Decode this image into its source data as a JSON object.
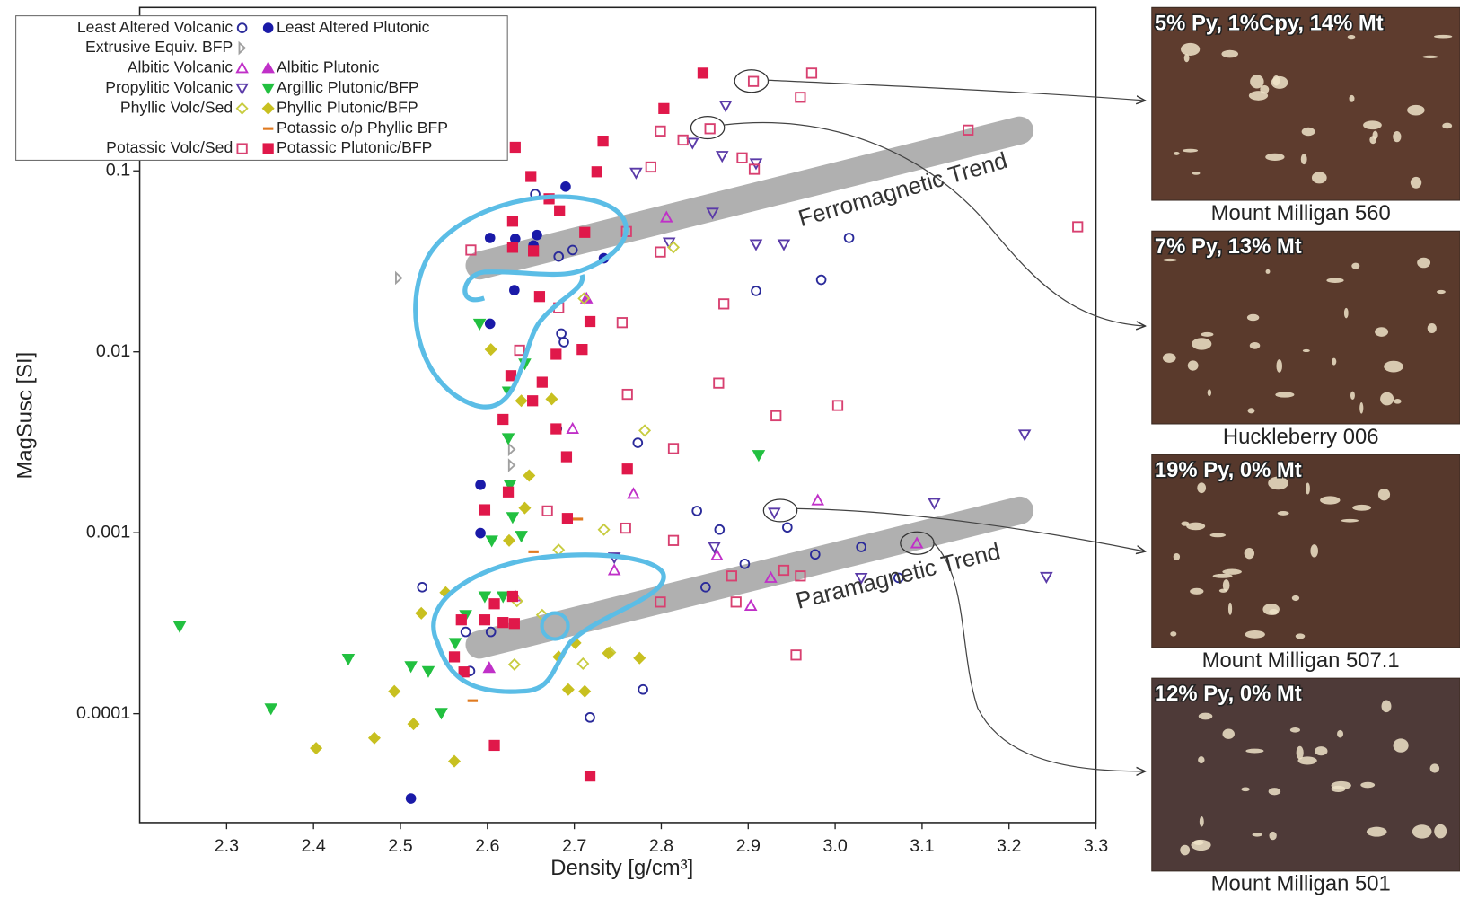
{
  "chart_data": {
    "type": "scatter",
    "x_label": "Density [g/cm³]",
    "y_label": "MagSusc [SI]",
    "yscale": "log",
    "xlim": [
      2.2,
      3.3
    ],
    "ylim": [
      2.5e-05,
      0.8
    ],
    "xticks": [
      2.3,
      2.4,
      2.5,
      2.6,
      2.7,
      2.8,
      2.9,
      {
        "value": 3,
        "label": "3.0"
      },
      3.1,
      3.2,
      3.3
    ],
    "yticks": [
      0.0001,
      0.001,
      0.01,
      0.1
    ],
    "legend": "upper left",
    "series": [
      {
        "name": "Least Altered Volcanic",
        "color": "#2a2a9a",
        "marker": "circle",
        "filled": false,
        "x": [
          2.655,
          2.698,
          2.682,
          2.909,
          2.984,
          3.016,
          2.685,
          2.688,
          2.68,
          2.773,
          2.841,
          2.867,
          2.945,
          2.896,
          3.03,
          2.977,
          2.851,
          2.779,
          2.718,
          2.525,
          2.58,
          2.575,
          2.604,
          3.073
        ],
        "y": [
          0.0743,
          0.0365,
          0.0336,
          0.0217,
          0.025,
          0.0426,
          0.0126,
          0.0113,
          0.00375,
          0.00314,
          0.00132,
          0.00104,
          0.00107,
          0.000673,
          0.000834,
          0.000759,
          0.0005,
          0.000136,
          9.53e-05,
          0.0005,
          0.000172,
          0.000283,
          0.000283,
          0.000563
        ]
      },
      {
        "name": "Least Altered Plutonic",
        "color": "#1a1aa8",
        "marker": "circle",
        "filled": true,
        "x": [
          2.69,
          2.603,
          2.632,
          2.657,
          2.653,
          2.734,
          2.631,
          2.603,
          2.592,
          2.592,
          2.512
        ],
        "y": [
          0.0818,
          0.0426,
          0.0421,
          0.0442,
          0.0387,
          0.0329,
          0.0219,
          0.0143,
          0.00184,
          0.000995,
          3.4e-05
        ]
      },
      {
        "name": "Extrusive Equiv. BFP",
        "color": "#a0a0a0",
        "marker": "tri-right",
        "filled": false,
        "x": [
          2.498,
          2.628,
          2.628
        ],
        "y": [
          0.0256,
          0.00236,
          0.00289
        ]
      },
      {
        "name": "Albitic Volcanic",
        "color": "#c030c8",
        "marker": "triangle",
        "filled": false,
        "x": [
          2.806,
          2.698,
          2.768,
          2.98,
          2.864,
          2.926,
          2.903,
          2.746,
          3.094,
          2.632
        ],
        "y": [
          0.0553,
          0.00375,
          0.00164,
          0.00151,
          0.000749,
          0.000563,
          0.000395,
          0.00062,
          0.000874,
          0.000445
        ]
      },
      {
        "name": "Albitic Plutonic",
        "color": "#c030c8",
        "marker": "triangle",
        "filled": true,
        "x": [
          2.602,
          2.714
        ],
        "y": [
          0.000179,
          0.0197
        ]
      },
      {
        "name": "Propylitic Volcanic",
        "color": "#5a3aa8",
        "marker": "invtriangle",
        "filled": false,
        "x": [
          2.874,
          2.836,
          2.87,
          2.909,
          2.771,
          2.809,
          2.909,
          2.941,
          2.859,
          3.218,
          2.93,
          3.114,
          2.861,
          2.746,
          3.243,
          3.03
        ],
        "y": [
          0.229,
          0.143,
          0.121,
          0.11,
          0.0977,
          0.0402,
          0.0393,
          0.0393,
          0.0587,
          0.00349,
          0.00129,
          0.00146,
          0.000834,
          0.000731,
          0.00057,
          0.000563
        ]
      },
      {
        "name": "Argillic Plutonic/BFP",
        "color": "#22c040",
        "marker": "invtriangle",
        "filled": true,
        "x": [
          2.246,
          2.351,
          2.44,
          2.512,
          2.547,
          2.532,
          2.563,
          2.575,
          2.597,
          2.618,
          2.591,
          2.624,
          2.624,
          2.626,
          2.629,
          2.643,
          2.912,
          2.605,
          2.639
        ],
        "y": [
          0.000304,
          0.000107,
          0.000201,
          0.000183,
          0.000101,
          0.000172,
          0.000246,
          0.000351,
          0.000445,
          0.000445,
          0.0143,
          0.00603,
          0.00333,
          0.00184,
          0.00122,
          0.00861,
          0.00269,
          0.000906,
          0.000961
        ]
      },
      {
        "name": "Phyllic Volc/Sed",
        "color": "#c8cc40",
        "marker": "diamond",
        "filled": false,
        "x": [
          2.814,
          2.711,
          2.781,
          2.734,
          2.634,
          2.631,
          2.71,
          2.741,
          2.663,
          2.682
        ],
        "y": [
          0.0378,
          0.0197,
          0.00367,
          0.00104,
          0.000419,
          0.000187,
          0.000189,
          0.000218,
          0.000351,
          0.000804
        ]
      },
      {
        "name": "Phyllic Plutonic/BFP",
        "color": "#c8c020",
        "marker": "diamond",
        "filled": true,
        "x": [
          2.403,
          2.47,
          2.493,
          2.515,
          2.524,
          2.552,
          2.562,
          2.604,
          2.639,
          2.674,
          2.648,
          2.625,
          2.643,
          2.693,
          2.712,
          2.775,
          2.682,
          2.701,
          2.739
        ],
        "y": [
          6.44e-05,
          7.34e-05,
          0.000133,
          8.77e-05,
          0.000359,
          0.000467,
          5.46e-05,
          0.0103,
          0.00536,
          0.00548,
          0.00207,
          0.000906,
          0.00137,
          0.000136,
          0.000133,
          0.000203,
          0.000206,
          0.000246,
          0.000216
        ]
      },
      {
        "name": "Potassic o/p Phyllic BFP",
        "color": "#e07a20",
        "marker": "dash",
        "filled": true,
        "x": [
          2.704,
          2.583,
          2.653
        ],
        "y": [
          0.00119,
          0.000118,
          0.000785
        ]
      },
      {
        "name": "Potassic Volc/Sed",
        "color": "#d84070",
        "marker": "square",
        "filled": false,
        "x": [
          2.906,
          2.973,
          2.96,
          2.799,
          2.825,
          2.856,
          2.893,
          2.907,
          2.788,
          3.153,
          2.581,
          2.76,
          2.799,
          2.872,
          2.755,
          2.637,
          2.682,
          2.761,
          2.866,
          2.932,
          3.003,
          3.279,
          2.814,
          2.669,
          2.759,
          2.814,
          2.955,
          2.881,
          2.941,
          2.96,
          2.886,
          2.799
        ],
        "y": [
          0.312,
          0.347,
          0.255,
          0.166,
          0.148,
          0.171,
          0.118,
          0.102,
          0.105,
          0.168,
          0.0365,
          0.0462,
          0.0356,
          0.0184,
          0.0145,
          0.0102,
          0.0175,
          0.00582,
          0.00671,
          0.00443,
          0.00505,
          0.0491,
          0.00292,
          0.00132,
          0.00106,
          0.000906,
          0.000211,
          0.000577,
          0.00062,
          0.000577,
          0.000414,
          0.000414
        ]
      },
      {
        "name": "Potassic Plutonic/BFP",
        "color": "#e0184a",
        "marker": "square",
        "filled": true,
        "x": [
          2.848,
          2.803,
          2.733,
          2.726,
          2.632,
          2.65,
          2.629,
          2.671,
          2.683,
          2.712,
          2.629,
          2.653,
          2.66,
          2.718,
          2.709,
          2.679,
          2.627,
          2.663,
          2.652,
          2.679,
          2.691,
          2.618,
          2.761,
          2.597,
          2.692,
          2.624,
          2.629,
          2.608,
          2.618,
          2.597,
          2.57,
          2.562,
          2.631,
          2.608,
          2.718,
          2.573
        ],
        "y": [
          0.347,
          0.221,
          0.146,
          0.0988,
          0.135,
          0.0931,
          0.0527,
          0.0701,
          0.0601,
          0.0457,
          0.0378,
          0.0361,
          0.0202,
          0.0147,
          0.0103,
          0.00969,
          0.00738,
          0.00679,
          0.00536,
          0.00375,
          0.00263,
          0.00423,
          0.00225,
          0.00134,
          0.0012,
          0.00168,
          0.000445,
          0.000405,
          0.000319,
          0.00033,
          0.00033,
          0.000206,
          0.000315,
          6.68e-05,
          4.52e-05,
          0.00017
        ]
      }
    ],
    "annotations": [
      "Ferromagnetic Trend",
      "Paramagnetic Trend"
    ],
    "panels": [
      {
        "caption": "5% Py, 1%Cpy, 14% Mt",
        "label": "Mount Milligan 560"
      },
      {
        "caption": "7% Py, 13% Mt",
        "label": "Huckleberry 006"
      },
      {
        "caption": "19% Py, 0% Mt",
        "label": "Mount Milligan 507.1"
      },
      {
        "caption": "12% Py, 0% Mt",
        "label": "Mount Milligan 501"
      }
    ]
  }
}
